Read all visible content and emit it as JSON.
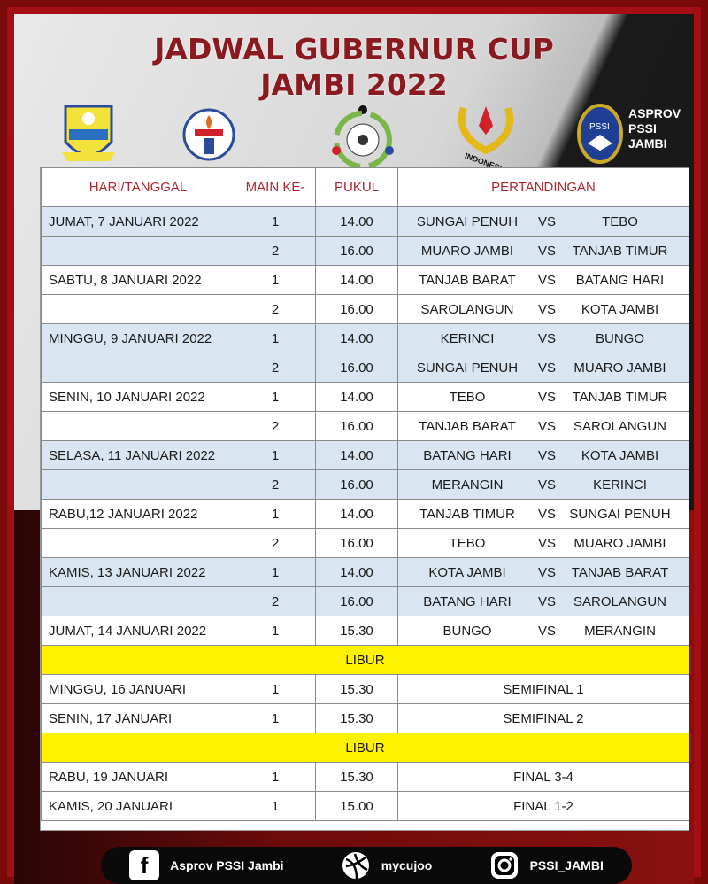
{
  "title_line1": "JADWAL GUBERNUR CUP",
  "title_line2": "JAMBI 2022",
  "logos": [
    "provinsi-jambi-emblem",
    "kemenpora-logo",
    "tournament-ball-logo",
    "koni-indonesia-logo",
    "pssi-logo"
  ],
  "koni_text": "INDONESIA",
  "asprov_text": [
    "ASPROV",
    "PSSI",
    "JAMBI"
  ],
  "headers": [
    "HARI/TANGGAL",
    "MAIN KE-",
    "PUKUL",
    "PERTANDINGAN"
  ],
  "rows": [
    {
      "date": "JUMAT, 7 JANUARI 2022",
      "game": "1",
      "time": "14.00",
      "home": "SUNGAI PENUH",
      "vs": "VS",
      "away": "TEBO",
      "shade": true
    },
    {
      "date": "",
      "game": "2",
      "time": "16.00",
      "home": "MUARO JAMBI",
      "vs": "VS",
      "away": "TANJAB TIMUR",
      "shade": true
    },
    {
      "date": "SABTU, 8 JANUARI 2022",
      "game": "1",
      "time": "14.00",
      "home": "TANJAB BARAT",
      "vs": "VS",
      "away": "BATANG HARI",
      "shade": false
    },
    {
      "date": "",
      "game": "2",
      "time": "16.00",
      "home": "SAROLANGUN",
      "vs": "VS",
      "away": "KOTA JAMBI",
      "shade": false
    },
    {
      "date": "MINGGU, 9 JANUARI 2022",
      "game": "1",
      "time": "14.00",
      "home": "KERINCI",
      "vs": "VS",
      "away": "BUNGO",
      "shade": true
    },
    {
      "date": "",
      "game": "2",
      "time": "16.00",
      "home": "SUNGAI PENUH",
      "vs": "VS",
      "away": "MUARO JAMBI",
      "shade": true
    },
    {
      "date": "SENIN, 10 JANUARI 2022",
      "game": "1",
      "time": "14.00",
      "home": "TEBO",
      "vs": "VS",
      "away": "TANJAB TIMUR",
      "shade": false
    },
    {
      "date": "",
      "game": "2",
      "time": "16.00",
      "home": "TANJAB BARAT",
      "vs": "VS",
      "away": "SAROLANGUN",
      "shade": false
    },
    {
      "date": "SELASA, 11 JANUARI 2022",
      "game": "1",
      "time": "14.00",
      "home": "BATANG HARI",
      "vs": "VS",
      "away": "KOTA JAMBI",
      "shade": true
    },
    {
      "date": "",
      "game": "2",
      "time": "16.00",
      "home": "MERANGIN",
      "vs": "VS",
      "away": "KERINCI",
      "shade": true
    },
    {
      "date": "RABU,12 JANUARI 2022",
      "game": "1",
      "time": "14.00",
      "home": "TANJAB TIMUR",
      "vs": "VS",
      "away": "SUNGAI PENUH",
      "shade": false
    },
    {
      "date": "",
      "game": "2",
      "time": "16.00",
      "home": "TEBO",
      "vs": "VS",
      "away": "MUARO JAMBI",
      "shade": false
    },
    {
      "date": "KAMIS, 13 JANUARI 2022",
      "game": "1",
      "time": "14.00",
      "home": "KOTA JAMBI",
      "vs": "VS",
      "away": "TANJAB BARAT",
      "shade": true
    },
    {
      "date": "",
      "game": "2",
      "time": "16.00",
      "home": "BATANG HARI",
      "vs": "VS",
      "away": "SAROLANGUN",
      "shade": true
    },
    {
      "date": "JUMAT, 14 JANUARI 2022",
      "game": "1",
      "time": "15.30",
      "home": "BUNGO",
      "vs": "VS",
      "away": "MERANGIN",
      "shade": false
    },
    {
      "libur": "LIBUR"
    },
    {
      "date": "MINGGU, 16 JANUARI",
      "game": "1",
      "time": "15.30",
      "match": "SEMIFINAL 1"
    },
    {
      "date": "SENIN, 17 JANUARI",
      "game": "1",
      "time": "15.30",
      "match": "SEMIFINAL 2"
    },
    {
      "libur": "LIBUR"
    },
    {
      "date": "RABU, 19 JANUARI",
      "game": "1",
      "time": "15.30",
      "match": "FINAL 3-4"
    },
    {
      "date": "KAMIS, 20 JANUARI",
      "game": "1",
      "time": "15.00",
      "match": "FINAL 1-2"
    }
  ],
  "footer": [
    {
      "icon": "facebook-icon",
      "label": "Asprov PSSI Jambi"
    },
    {
      "icon": "mycujoo-ball-icon",
      "label": "mycujoo"
    },
    {
      "icon": "instagram-icon",
      "label": "PSSI_JAMBI"
    }
  ],
  "colors": {
    "title": "#8a1a1f",
    "frame": "#a30f14",
    "shade": "#d9e5f1",
    "libur": "#fff200",
    "header_text": "#b0262c"
  }
}
